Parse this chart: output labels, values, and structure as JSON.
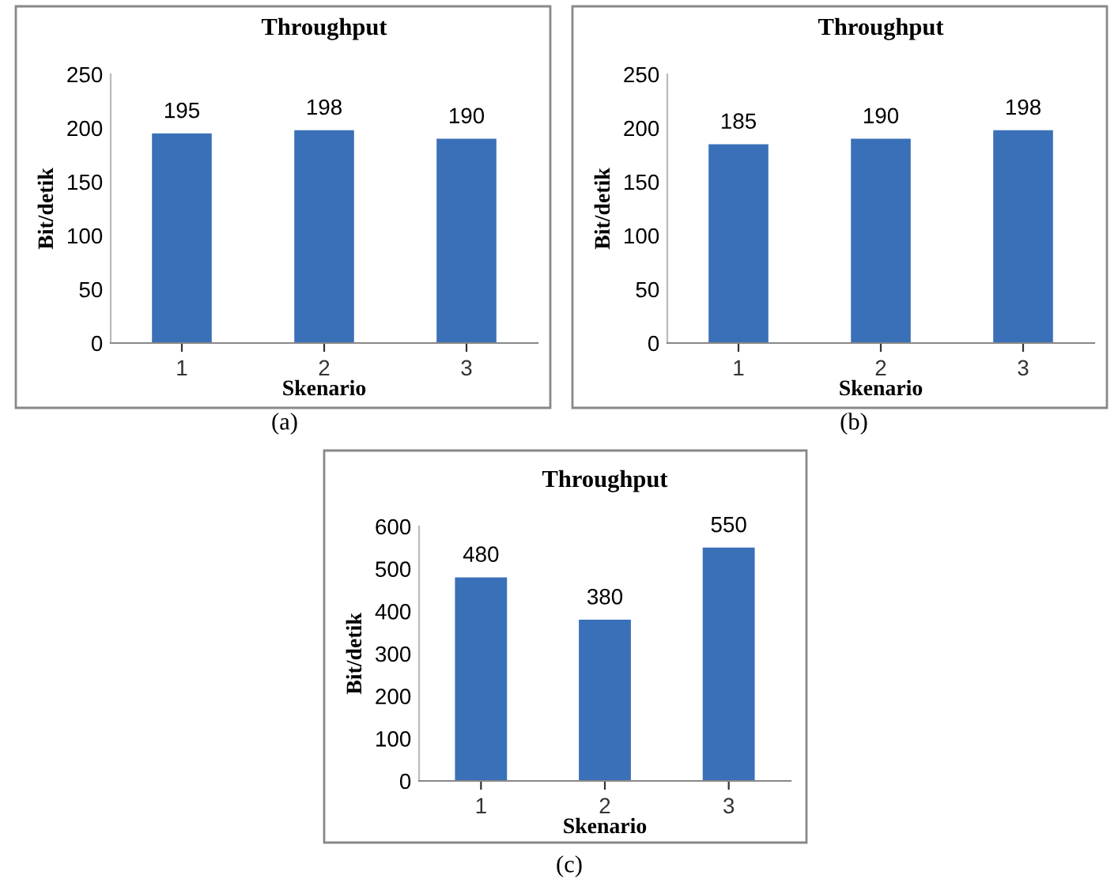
{
  "chart_data": [
    {
      "type": "bar",
      "title": "Throughput",
      "xlabel": "Skenario",
      "ylabel": "Bit/detik",
      "categories": [
        "1",
        "2",
        "3"
      ],
      "values": [
        195,
        198,
        190
      ],
      "color": "#3a70b8",
      "ylim": [
        0,
        250
      ],
      "yticks": [
        0,
        50,
        100,
        150,
        200,
        250
      ],
      "data_labels": true,
      "grid": false,
      "annotations": [
        "(a)"
      ]
    },
    {
      "type": "bar",
      "title": "Throughput",
      "xlabel": "Skenario",
      "ylabel": "Bit/detik",
      "categories": [
        "1",
        "2",
        "3"
      ],
      "values": [
        185,
        190,
        198
      ],
      "color": "#3a70b8",
      "ylim": [
        0,
        250
      ],
      "yticks": [
        0,
        50,
        100,
        150,
        200,
        250
      ],
      "data_labels": true,
      "grid": false,
      "annotations": [
        "(b)"
      ]
    },
    {
      "type": "bar",
      "title": "Throughput",
      "xlabel": "Skenario",
      "ylabel": "Bit/detik",
      "categories": [
        "1",
        "2",
        "3"
      ],
      "values": [
        480,
        380,
        550
      ],
      "color": "#3a70b8",
      "ylim": [
        0,
        600
      ],
      "yticks": [
        0,
        100,
        200,
        300,
        400,
        500,
        600
      ],
      "data_labels": true,
      "grid": false,
      "annotations": [
        "(c)"
      ]
    }
  ]
}
